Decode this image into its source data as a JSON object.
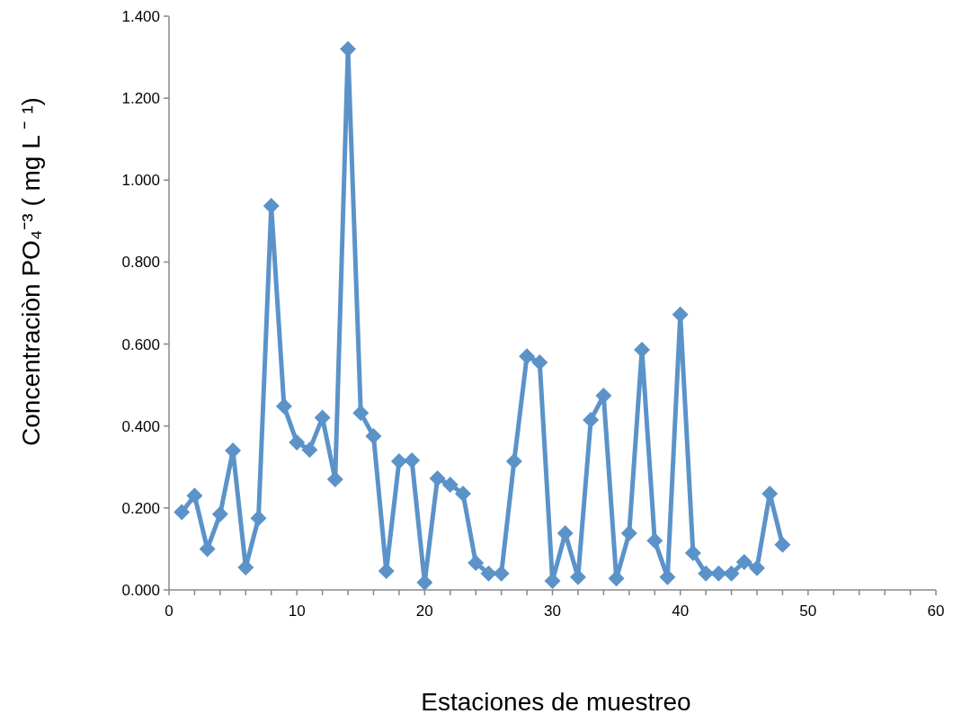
{
  "chart_data": {
    "type": "line",
    "xlabel": "Estaciones de muestreo",
    "ylabel": "Concentraciòn  PO₄⁻³ ( mg  L ⁻ ¹)",
    "x": [
      1,
      2,
      3,
      4,
      5,
      6,
      7,
      8,
      9,
      10,
      11,
      12,
      13,
      14,
      15,
      16,
      17,
      18,
      19,
      20,
      21,
      22,
      23,
      24,
      25,
      26,
      27,
      28,
      29,
      30,
      31,
      32,
      33,
      34,
      35,
      36,
      37,
      38,
      39,
      40,
      41,
      42,
      43,
      44,
      45,
      46,
      47,
      48
    ],
    "series": [
      {
        "color": "#5b93c9",
        "values": [
          0.19,
          0.23,
          0.1,
          0.185,
          0.34,
          0.055,
          0.175,
          0.937,
          0.448,
          0.36,
          0.342,
          0.42,
          0.27,
          1.32,
          0.432,
          0.375,
          0.046,
          0.314,
          0.316,
          0.018,
          0.272,
          0.257,
          0.235,
          0.066,
          0.04,
          0.04,
          0.314,
          0.57,
          0.555,
          0.022,
          0.138,
          0.031,
          0.415,
          0.474,
          0.028,
          0.138,
          0.586,
          0.12,
          0.031,
          0.672,
          0.09,
          0.04,
          0.04,
          0.04,
          0.068,
          0.053,
          0.235,
          0.11
        ]
      }
    ],
    "xlim": [
      0,
      60
    ],
    "xticks": [
      0,
      {
        "value": 2,
        "label": null
      },
      {
        "value": 4,
        "label": null
      },
      {
        "value": 6,
        "label": null
      },
      {
        "value": 8,
        "label": null
      },
      10,
      {
        "value": 12,
        "label": null
      },
      {
        "value": 14,
        "label": null
      },
      {
        "value": 16,
        "label": null
      },
      {
        "value": 18,
        "label": null
      },
      20,
      {
        "value": 22,
        "label": null
      },
      {
        "value": 24,
        "label": null
      },
      {
        "value": 26,
        "label": null
      },
      {
        "value": 28,
        "label": null
      },
      30,
      {
        "value": 32,
        "label": null
      },
      {
        "value": 34,
        "label": null
      },
      {
        "value": 36,
        "label": null
      },
      {
        "value": 38,
        "label": null
      },
      40,
      {
        "value": 42,
        "label": null
      },
      {
        "value": 44,
        "label": null
      },
      {
        "value": 46,
        "label": null
      },
      {
        "value": 48,
        "label": null
      },
      50,
      {
        "value": 52,
        "label": null
      },
      {
        "value": 54,
        "label": null
      },
      {
        "value": 56,
        "label": null
      },
      {
        "value": 58,
        "label": null
      },
      60
    ],
    "ylim": [
      0,
      1.4
    ],
    "yticks": [
      {
        "value": 0,
        "label": "0.000"
      },
      {
        "value": 0.2,
        "label": "0.200"
      },
      {
        "value": 0.4,
        "label": "0.400"
      },
      {
        "value": 0.6,
        "label": "0.600"
      },
      {
        "value": 0.8,
        "label": "0.800"
      },
      {
        "value": 1,
        "label": "1.000"
      },
      {
        "value": 1.2,
        "label": "1.200"
      },
      {
        "value": 1.4,
        "label": "1.400"
      }
    ],
    "grid": false,
    "marker": "diamond",
    "line_style": "solid"
  }
}
